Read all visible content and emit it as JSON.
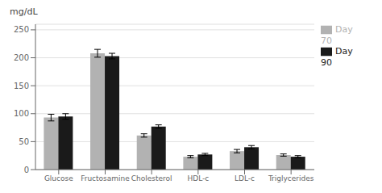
{
  "chart_data": {
    "type": "bar",
    "ylabel": "mg/dL",
    "categories": [
      "Glucose",
      "Fructosamine",
      "Cholesterol",
      "HDL-c",
      "LDL-c",
      "Triglycerides"
    ],
    "series": [
      {
        "name": "Day 70",
        "color": "#b2b2b2",
        "values": [
          93,
          208,
          61,
          23,
          33,
          26
        ],
        "errors": [
          6,
          7,
          3,
          2,
          3,
          2
        ]
      },
      {
        "name": "Day 90",
        "color": "#1a1a1a",
        "values": [
          95,
          203,
          77,
          27,
          40,
          23
        ],
        "errors": [
          5,
          5,
          3,
          2,
          3,
          2
        ]
      }
    ],
    "ylim": [
      0,
      260
    ],
    "yticks": [
      0,
      50,
      100,
      150,
      200,
      250
    ],
    "grid": true,
    "legend": "right"
  }
}
